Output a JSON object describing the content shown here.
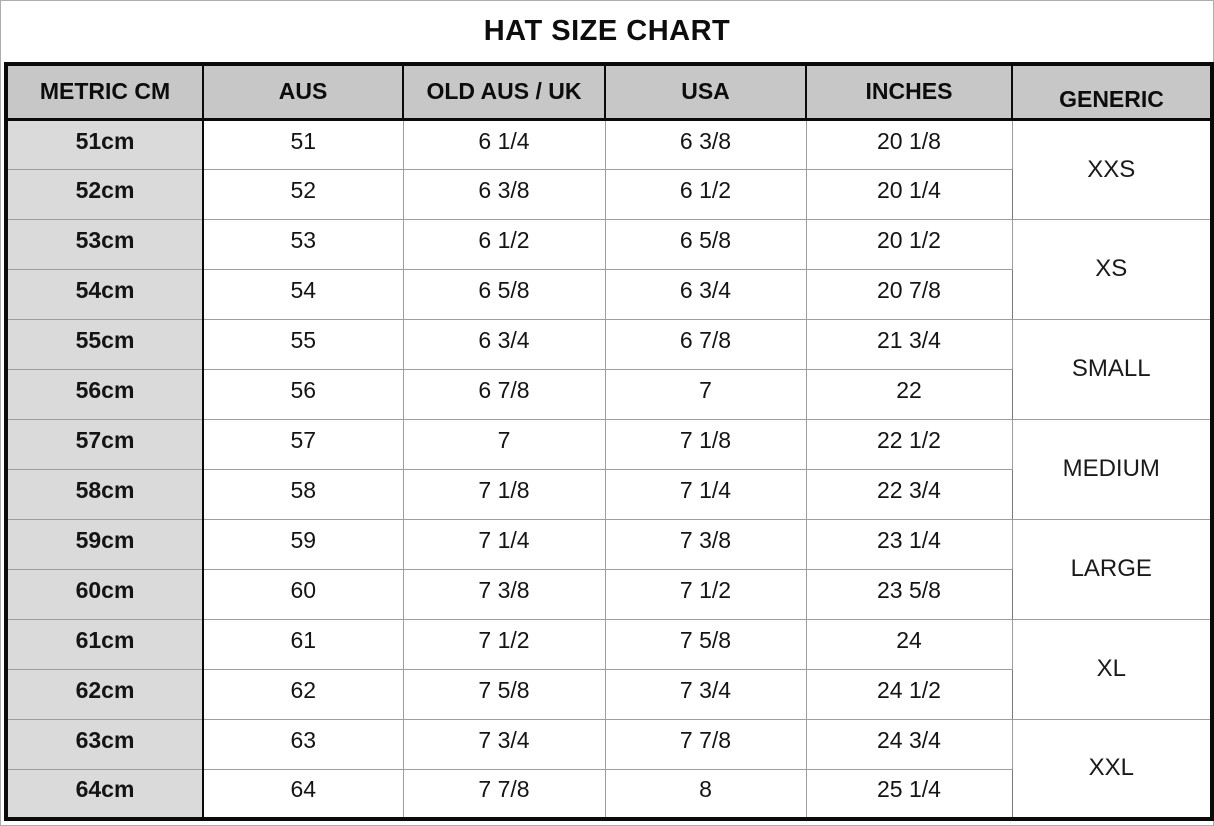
{
  "title": "HAT SIZE CHART",
  "chart_data": {
    "type": "table",
    "title": "HAT SIZE CHART",
    "columns": [
      "METRIC CM",
      "AUS",
      "OLD AUS / UK",
      "USA",
      "INCHES",
      "GENERIC"
    ],
    "rows": [
      [
        "51cm",
        "51",
        "6 1/4",
        "6 3/8",
        "20 1/8"
      ],
      [
        "52cm",
        "52",
        "6 3/8",
        "6 1/2",
        "20 1/4"
      ],
      [
        "53cm",
        "53",
        "6 1/2",
        "6 5/8",
        "20 1/2"
      ],
      [
        "54cm",
        "54",
        "6 5/8",
        "6 3/4",
        "20 7/8"
      ],
      [
        "55cm",
        "55",
        "6 3/4",
        "6 7/8",
        "21 3/4"
      ],
      [
        "56cm",
        "56",
        "6 7/8",
        "7",
        "22"
      ],
      [
        "57cm",
        "57",
        "7",
        "7 1/8",
        "22 1/2"
      ],
      [
        "58cm",
        "58",
        "7 1/8",
        "7 1/4",
        "22 3/4"
      ],
      [
        "59cm",
        "59",
        "7 1/4",
        "7 3/8",
        "23 1/4"
      ],
      [
        "60cm",
        "60",
        "7 3/8",
        "7 1/2",
        "23 5/8"
      ],
      [
        "61cm",
        "61",
        "7 1/2",
        "7 5/8",
        "24"
      ],
      [
        "62cm",
        "62",
        "7 5/8",
        "7 3/4",
        "24 1/2"
      ],
      [
        "63cm",
        "63",
        "7 3/4",
        "7 7/8",
        "24 3/4"
      ],
      [
        "64cm",
        "64",
        "7 7/8",
        "8",
        "25 1/4"
      ]
    ],
    "generic_groups": [
      {
        "label": "XXS",
        "span": 2
      },
      {
        "label": "XS",
        "span": 2
      },
      {
        "label": "SMALL",
        "span": 2
      },
      {
        "label": "MEDIUM",
        "span": 2
      },
      {
        "label": "LARGE",
        "span": 2
      },
      {
        "label": "XL",
        "span": 2
      },
      {
        "label": "XXL",
        "span": 2
      }
    ]
  },
  "colors": {
    "header_bg": "#c7c7c7",
    "metric_column_bg": "#dadada",
    "grid_line": "#9e9e9e",
    "frame": "#0a0a0a",
    "text": "#141414"
  }
}
